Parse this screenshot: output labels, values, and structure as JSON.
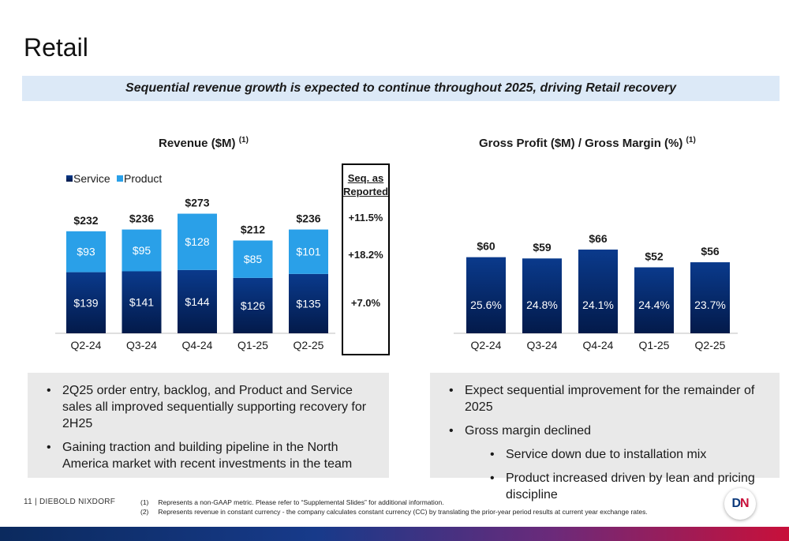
{
  "page": {
    "title": "Retail",
    "banner": "Sequential revenue growth is expected to continue throughout 2025, driving Retail recovery",
    "footer_left": "11  |  DIEBOLD NIXDORF",
    "footnotes": [
      {
        "num": "(1)",
        "text": "Represents a non-GAAP metric.  Please refer to “Supplemental Slides” for additional information."
      },
      {
        "num": "(2)",
        "text": "Represents revenue in constant currency - the company calculates constant currency (CC) by translating the prior-year period results at current year exchange rates."
      }
    ],
    "logo": {
      "left": "D",
      "right": "N"
    }
  },
  "colors": {
    "service_top": "#0a3a8c",
    "service_bottom": "#031a4a",
    "product": "#2aa0e8",
    "banner_bg": "#dce9f7",
    "panel_bg": "#e9e9e9"
  },
  "chart_data": [
    {
      "type": "bar",
      "stacked": true,
      "title": "Revenue ($M)",
      "title_note": "(1)",
      "categories": [
        "Q2-24",
        "Q3-24",
        "Q4-24",
        "Q1-25",
        "Q2-25"
      ],
      "series": [
        {
          "name": "Service",
          "values": [
            139,
            141,
            144,
            126,
            135
          ],
          "labels": [
            "$139",
            "$141",
            "$144",
            "$126",
            "$135"
          ]
        },
        {
          "name": "Product",
          "values": [
            93,
            95,
            128,
            85,
            101
          ],
          "labels": [
            "$93",
            "$95",
            "$128",
            "$85",
            "$101"
          ]
        }
      ],
      "totals": [
        232,
        236,
        273,
        212,
        236
      ],
      "total_labels": [
        "$232",
        "$236",
        "$273",
        "$212",
        "$236"
      ],
      "legend": "top-left",
      "grid": false,
      "ylim": [
        0,
        273
      ]
    },
    {
      "type": "bar",
      "title": "Gross Profit ($M) / Gross Margin (%)",
      "title_note": "(1)",
      "categories": [
        "Q2-24",
        "Q3-24",
        "Q4-24",
        "Q1-25",
        "Q2-25"
      ],
      "series": [
        {
          "values": [
            60,
            59,
            66,
            52,
            56
          ],
          "labels": [
            "$60",
            "$59",
            "$66",
            "$52",
            "$56"
          ]
        }
      ],
      "margins": [
        25.6,
        24.8,
        24.1,
        24.4,
        23.7
      ],
      "margin_labels": [
        "25.6%",
        "24.8%",
        "24.1%",
        "24.4%",
        "23.7%"
      ],
      "grid": false,
      "ylim": [
        0,
        66
      ]
    }
  ],
  "seq": {
    "heading_line1": "Seq. as",
    "heading_line2": "Reported",
    "values": [
      "+11.5%",
      "+18.2%",
      "+7.0%"
    ]
  },
  "bullets_left": [
    "2Q25 order entry, backlog, and Product and Service sales all improved sequentially supporting recovery for 2H25",
    "Gaining traction and building pipeline in the North America market with recent investments in the team"
  ],
  "bullets_right": [
    {
      "text": "Expect sequential improvement for the remainder of 2025",
      "level": 1
    },
    {
      "text": "Gross margin declined",
      "level": 1
    },
    {
      "text": "Service down due to installation mix",
      "level": 2
    },
    {
      "text": "Product increased driven by lean and pricing discipline",
      "level": 2
    }
  ]
}
